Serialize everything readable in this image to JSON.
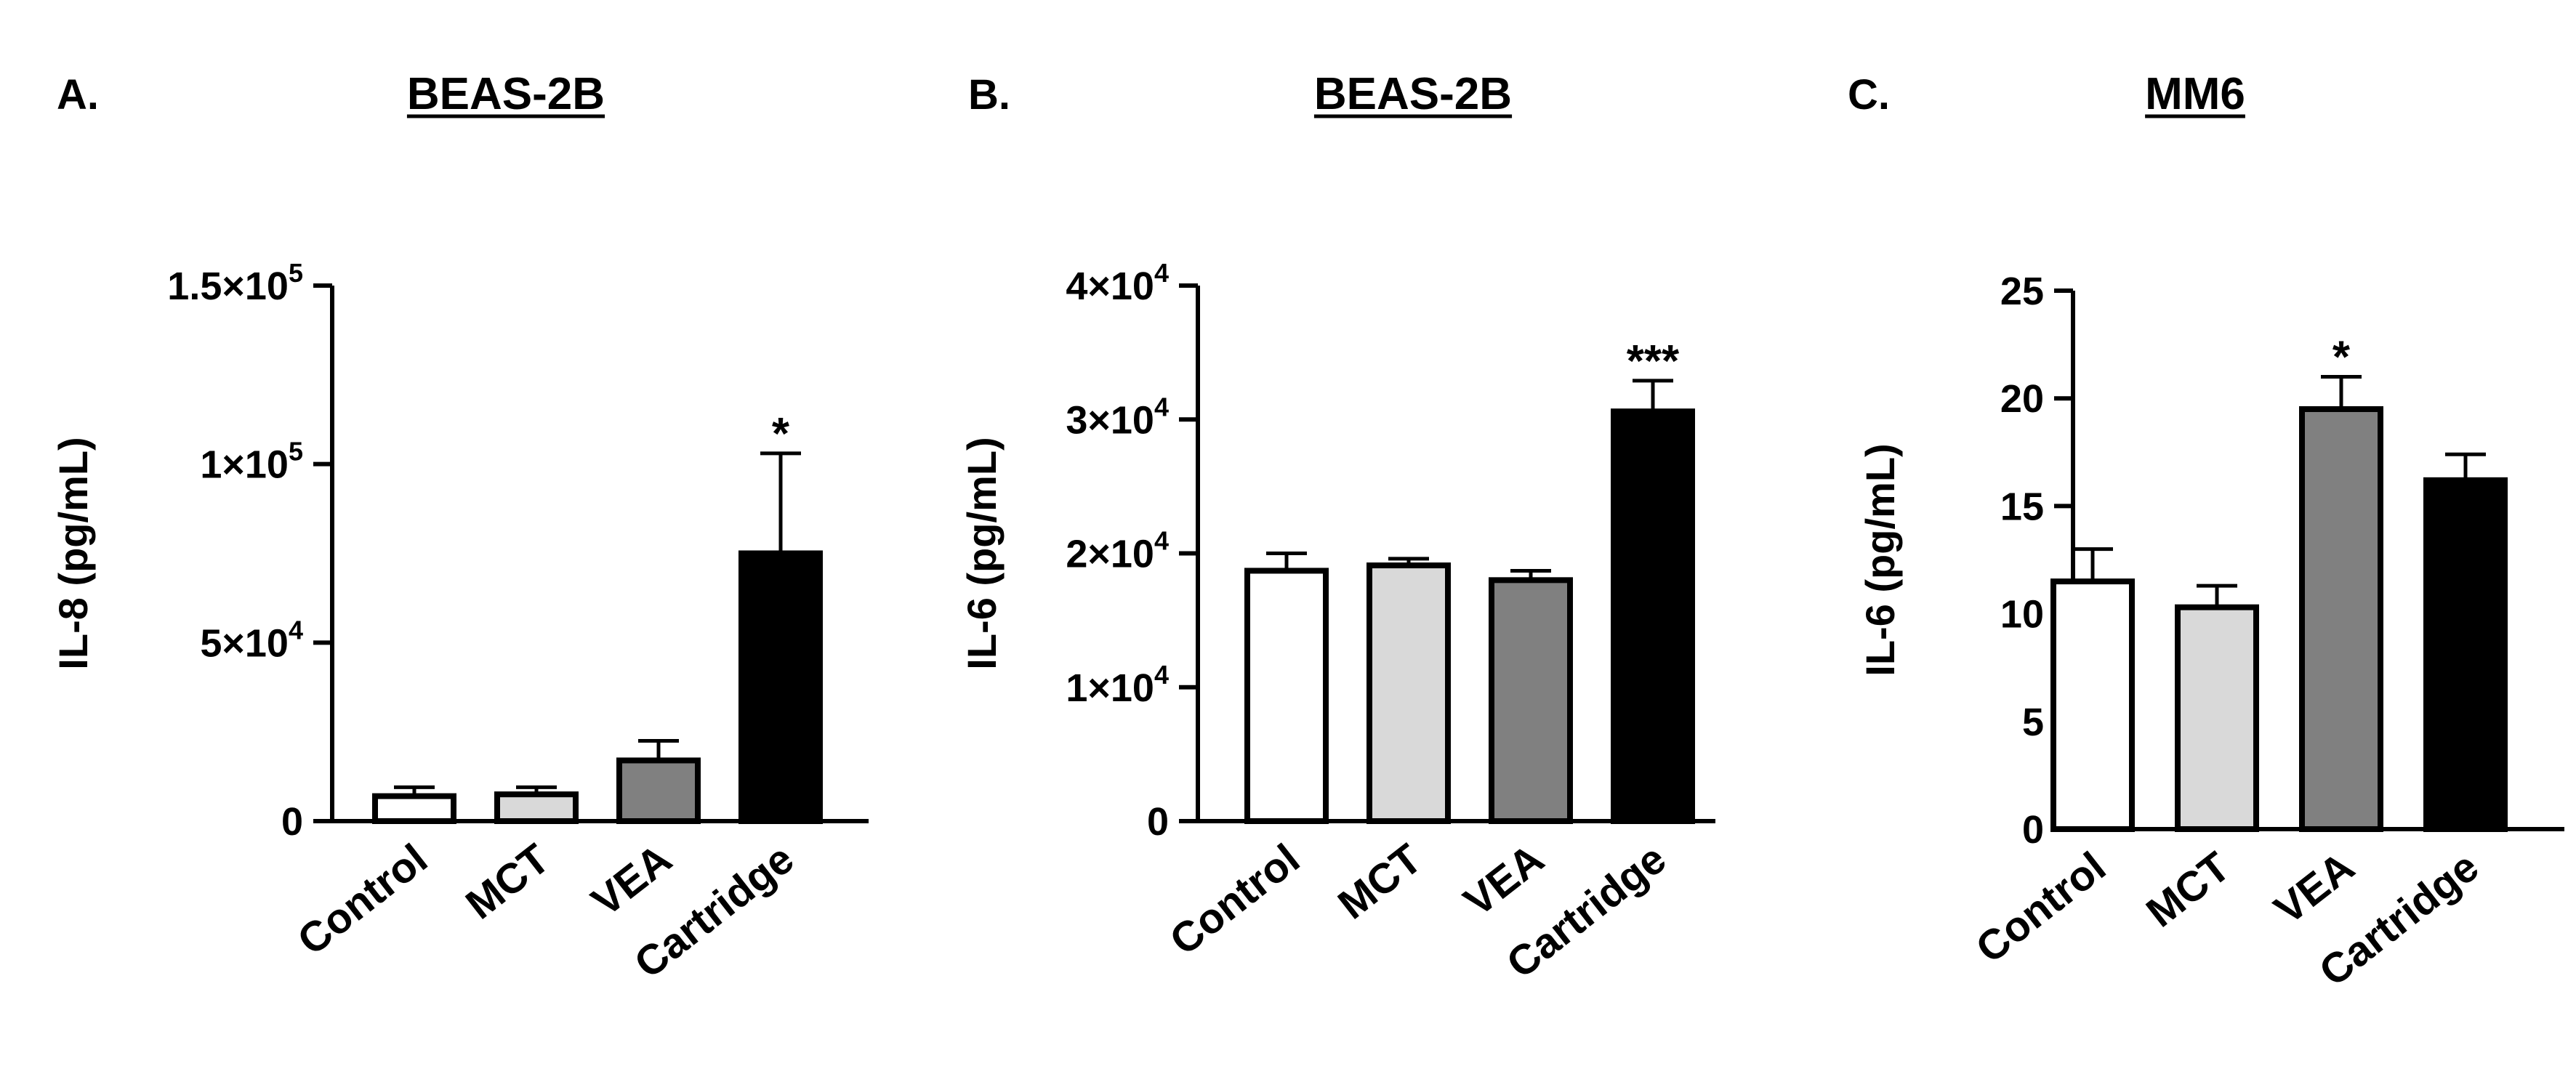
{
  "chart_data": [
    {
      "type": "bar",
      "panel_label": "A.",
      "title": "BEAS-2B",
      "ylabel": "IL-8 (pg/mL)",
      "xlabel": "",
      "categories": [
        "Control",
        "MCT",
        "VEA",
        "Cartridge"
      ],
      "values": [
        7000,
        7500,
        17000,
        75000
      ],
      "errors": [
        2500,
        2000,
        5500,
        28000
      ],
      "significance": [
        "",
        "",
        "",
        "*"
      ],
      "bar_colors": [
        "#ffffff",
        "#d9d9d9",
        "#808080",
        "#000000"
      ],
      "ylim": [
        0,
        150000
      ],
      "yticks": [
        0,
        50000,
        100000,
        150000
      ],
      "ytick_labels": [
        {
          "base": "0",
          "exp": ""
        },
        {
          "base": "5×10",
          "exp": "4"
        },
        {
          "base": "1×10",
          "exp": "5"
        },
        {
          "base": "1.5×10",
          "exp": "5"
        }
      ],
      "grid": false,
      "legend": "none"
    },
    {
      "type": "bar",
      "panel_label": "B.",
      "title": "BEAS-2B",
      "ylabel": "IL-6 (pg/mL)",
      "xlabel": "",
      "categories": [
        "Control",
        "MCT",
        "VEA",
        "Cartridge"
      ],
      "values": [
        18700,
        19100,
        18000,
        30600
      ],
      "errors": [
        1300,
        500,
        700,
        2300
      ],
      "significance": [
        "",
        "",
        "",
        "***"
      ],
      "bar_colors": [
        "#ffffff",
        "#d9d9d9",
        "#808080",
        "#000000"
      ],
      "ylim": [
        0,
        40000
      ],
      "yticks": [
        0,
        10000,
        20000,
        30000,
        40000
      ],
      "ytick_labels": [
        {
          "base": "0",
          "exp": ""
        },
        {
          "base": "1×10",
          "exp": "4"
        },
        {
          "base": "2×10",
          "exp": "4"
        },
        {
          "base": "3×10",
          "exp": "4"
        },
        {
          "base": "4×10",
          "exp": "4"
        }
      ],
      "grid": false,
      "legend": "none"
    },
    {
      "type": "bar",
      "panel_label": "C.",
      "title": "MM6",
      "ylabel": "IL-6 (pg/mL)",
      "xlabel": "",
      "categories": [
        "Control",
        "MCT",
        "VEA",
        "Cartridge"
      ],
      "values": [
        11.5,
        10.3,
        19.5,
        16.2
      ],
      "errors": [
        1.5,
        1.0,
        1.5,
        1.2
      ],
      "significance": [
        "",
        "",
        "*",
        ""
      ],
      "bar_colors": [
        "#ffffff",
        "#d9d9d9",
        "#808080",
        "#000000"
      ],
      "ylim": [
        0,
        25
      ],
      "yticks": [
        0,
        5,
        10,
        15,
        20,
        25
      ],
      "ytick_labels": [
        {
          "base": "0",
          "exp": ""
        },
        {
          "base": "5",
          "exp": ""
        },
        {
          "base": "10",
          "exp": ""
        },
        {
          "base": "15",
          "exp": ""
        },
        {
          "base": "20",
          "exp": ""
        },
        {
          "base": "25",
          "exp": ""
        }
      ],
      "grid": false,
      "legend": "none"
    }
  ]
}
